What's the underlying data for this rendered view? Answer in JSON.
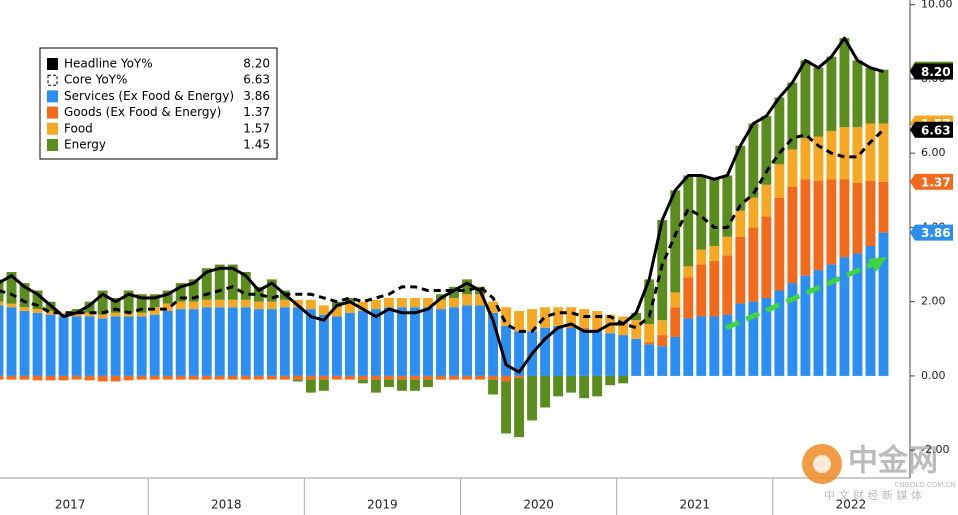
{
  "chart_data": {
    "type": "bar",
    "year_labels": [
      "2017",
      "2018",
      "2019",
      "2020",
      "2021",
      "2022"
    ],
    "ylim": [
      -2.75,
      10.1
    ],
    "yticks": [
      {
        "value": -2,
        "label": "-2.00"
      },
      {
        "value": 0,
        "label": "0.00"
      },
      {
        "value": 2,
        "label": "2.00"
      },
      {
        "value": 4,
        "label": "4.00"
      },
      {
        "value": 6,
        "label": "6.00"
      },
      {
        "value": 8,
        "label": "8.00"
      },
      {
        "value": 10,
        "label": "10.00"
      }
    ],
    "series": [
      {
        "name": "Headline YoY%",
        "type": "line",
        "style": "solid",
        "color": "#000000",
        "values": [
          2.5,
          2.7,
          2.4,
          2.2,
          1.9,
          1.6,
          1.7,
          1.9,
          2.2,
          2.0,
          2.2,
          2.1,
          2.1,
          2.2,
          2.4,
          2.5,
          2.8,
          2.9,
          2.9,
          2.7,
          2.3,
          2.5,
          2.2,
          1.9,
          1.6,
          1.5,
          1.9,
          2.0,
          1.8,
          1.6,
          1.8,
          1.7,
          1.7,
          1.8,
          2.1,
          2.3,
          2.5,
          2.3,
          1.5,
          0.3,
          0.1,
          0.6,
          1.0,
          1.3,
          1.4,
          1.2,
          1.2,
          1.4,
          1.4,
          1.7,
          2.6,
          4.2,
          5.0,
          5.4,
          5.4,
          5.3,
          5.4,
          6.2,
          6.8,
          7.0,
          7.5,
          7.9,
          8.5,
          8.3,
          8.6,
          9.1,
          8.5,
          8.3,
          8.2
        ],
        "value_labels": [
          null,
          null,
          null,
          null,
          null,
          null,
          null,
          null,
          null,
          null,
          null,
          null,
          null,
          null,
          null,
          null,
          null,
          null,
          null,
          null,
          null,
          null,
          null,
          null,
          null,
          null,
          null,
          null,
          null,
          null,
          null,
          null,
          null,
          null,
          null,
          null,
          null,
          null,
          null,
          null,
          null,
          null,
          null,
          null,
          null,
          null,
          null,
          null,
          null,
          null,
          null,
          null,
          null,
          null,
          null,
          null,
          null,
          null,
          null,
          null,
          null,
          null,
          null,
          null,
          null,
          null,
          null,
          null,
          "8.20"
        ]
      },
      {
        "name": "Core YoY%",
        "type": "line",
        "style": "dashed",
        "color": "#000000",
        "values": [
          2.3,
          2.2,
          2.0,
          1.9,
          1.7,
          1.7,
          1.7,
          1.7,
          1.7,
          1.8,
          1.7,
          1.8,
          1.8,
          1.8,
          2.1,
          2.1,
          2.2,
          2.3,
          2.4,
          2.2,
          2.2,
          2.1,
          2.2,
          2.2,
          2.2,
          2.1,
          2.0,
          2.1,
          2.0,
          2.1,
          2.2,
          2.4,
          2.4,
          2.3,
          2.3,
          2.3,
          2.3,
          2.4,
          2.1,
          1.4,
          1.2,
          1.2,
          1.6,
          1.7,
          1.7,
          1.6,
          1.6,
          1.6,
          1.4,
          1.3,
          1.6,
          3.0,
          3.8,
          4.5,
          4.3,
          4.0,
          4.0,
          4.6,
          4.9,
          5.5,
          6.0,
          6.4,
          6.5,
          6.2,
          6.0,
          5.9,
          5.9,
          6.3,
          6.63
        ]
      },
      {
        "name": "Services (Ex Food & Energy)",
        "type": "bar",
        "color": "#2b8ef0",
        "values": [
          1.9,
          1.85,
          1.75,
          1.7,
          1.65,
          1.6,
          1.6,
          1.6,
          1.55,
          1.6,
          1.6,
          1.6,
          1.65,
          1.75,
          1.8,
          1.8,
          1.85,
          1.85,
          1.85,
          1.85,
          1.8,
          1.8,
          1.85,
          1.85,
          1.8,
          1.65,
          1.6,
          1.7,
          1.75,
          1.8,
          1.85,
          1.85,
          1.85,
          1.85,
          1.8,
          1.85,
          1.9,
          1.9,
          1.7,
          1.35,
          1.2,
          1.2,
          1.3,
          1.35,
          1.3,
          1.25,
          1.2,
          1.15,
          1.1,
          1.0,
          0.85,
          0.8,
          1.05,
          1.55,
          1.6,
          1.6,
          1.65,
          1.95,
          2.0,
          2.1,
          2.3,
          2.5,
          2.7,
          2.85,
          3.0,
          3.2,
          3.3,
          3.5,
          3.86
        ]
      },
      {
        "name": "Goods (Ex Food & Energy)",
        "type": "bar",
        "color": "#f26b1d",
        "values": [
          -0.1,
          -0.1,
          -0.1,
          -0.12,
          -0.12,
          -0.12,
          -0.1,
          -0.12,
          -0.15,
          -0.15,
          -0.12,
          -0.1,
          -0.1,
          -0.1,
          -0.1,
          -0.1,
          -0.1,
          -0.1,
          -0.1,
          -0.1,
          -0.1,
          -0.1,
          -0.1,
          -0.1,
          -0.1,
          -0.1,
          -0.1,
          -0.1,
          -0.1,
          -0.1,
          -0.1,
          -0.1,
          -0.1,
          -0.1,
          -0.1,
          -0.1,
          -0.1,
          -0.1,
          -0.1,
          -0.15,
          -0.05,
          0,
          0,
          0,
          0.05,
          0.05,
          0.05,
          0,
          0,
          0,
          0.05,
          0.3,
          0.8,
          1.1,
          1.4,
          1.5,
          1.6,
          1.8,
          2.0,
          2.2,
          2.5,
          2.6,
          2.6,
          2.4,
          2.3,
          2.1,
          1.9,
          1.75,
          1.37
        ]
      },
      {
        "name": "Food",
        "type": "bar",
        "color": "#f7a823",
        "values": [
          0.1,
          0.1,
          0.1,
          0.1,
          0.1,
          0.1,
          0.1,
          0.1,
          0.1,
          0.1,
          0.1,
          0.1,
          0.2,
          0.2,
          0.2,
          0.2,
          0.2,
          0.2,
          0.2,
          0.2,
          0.2,
          0.2,
          0.2,
          0.2,
          0.25,
          0.25,
          0.25,
          0.25,
          0.25,
          0.25,
          0.25,
          0.25,
          0.25,
          0.25,
          0.25,
          0.25,
          0.3,
          0.3,
          0.3,
          0.5,
          0.55,
          0.6,
          0.55,
          0.5,
          0.5,
          0.5,
          0.5,
          0.5,
          0.5,
          0.5,
          0.5,
          0.4,
          0.4,
          0.3,
          0.4,
          0.4,
          0.5,
          0.7,
          0.8,
          0.85,
          0.9,
          1.0,
          1.1,
          1.2,
          1.3,
          1.4,
          1.5,
          1.55,
          1.57
        ]
      },
      {
        "name": "Energy",
        "type": "bar",
        "color": "#5b8c1e",
        "values": [
          0.6,
          0.85,
          0.65,
          0.5,
          0.25,
          0.0,
          0.1,
          0.3,
          0.65,
          0.4,
          0.6,
          0.5,
          0.35,
          0.35,
          0.5,
          0.6,
          0.85,
          0.95,
          0.95,
          0.75,
          0.4,
          0.6,
          0.25,
          -0.05,
          -0.35,
          -0.3,
          0.15,
          0.15,
          -0.1,
          -0.35,
          -0.2,
          -0.3,
          -0.3,
          -0.2,
          0.15,
          0.3,
          0.4,
          0.2,
          -0.4,
          -1.4,
          -1.6,
          -1.2,
          -0.85,
          -0.55,
          -0.45,
          -0.6,
          -0.55,
          -0.25,
          -0.2,
          0.2,
          1.2,
          2.7,
          2.75,
          2.45,
          2.0,
          1.8,
          1.65,
          1.75,
          2.0,
          1.85,
          1.8,
          1.8,
          2.1,
          1.85,
          2.0,
          2.4,
          1.8,
          1.5,
          1.45
        ]
      }
    ]
  },
  "watermark": {
    "name": "中金网",
    "url": "CNGOLD.COM.CN",
    "slogan": "中 文 财 经 新 媒 体"
  }
}
